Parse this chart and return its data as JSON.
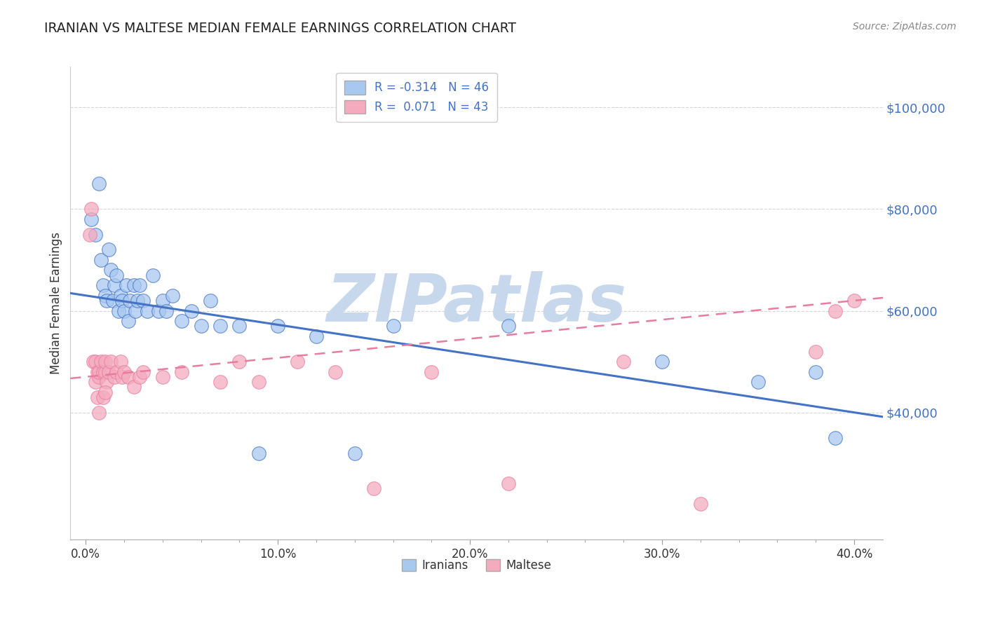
{
  "title": "IRANIAN VS MALTESE MEDIAN FEMALE EARNINGS CORRELATION CHART",
  "source": "Source: ZipAtlas.com",
  "ylabel": "Median Female Earnings",
  "xlabel_ticks": [
    "0.0%",
    "",
    "",
    "",
    "",
    "10.0%",
    "",
    "",
    "",
    "",
    "20.0%",
    "",
    "",
    "",
    "",
    "30.0%",
    "",
    "",
    "",
    "",
    "40.0%"
  ],
  "xlabel_vals": [
    0.0,
    0.02,
    0.04,
    0.06,
    0.08,
    0.1,
    0.12,
    0.14,
    0.16,
    0.18,
    0.2,
    0.22,
    0.24,
    0.26,
    0.28,
    0.3,
    0.32,
    0.34,
    0.36,
    0.38,
    0.4
  ],
  "xlim": [
    -0.008,
    0.415
  ],
  "ylim": [
    15000,
    108000
  ],
  "ytick_vals": [
    40000,
    60000,
    80000,
    100000
  ],
  "ytick_labels": [
    "$40,000",
    "$60,000",
    "$80,000",
    "$100,000"
  ],
  "iranians_R": -0.314,
  "iranians_N": 46,
  "maltese_R": 0.071,
  "maltese_N": 43,
  "legend_label_iranians": "Iranians",
  "legend_label_maltese": "Maltese",
  "color_iranians": "#A8C8F0",
  "color_maltese": "#F4ABBE",
  "line_color_iranians": "#4472C4",
  "line_color_maltese": "#E87CA0",
  "watermark": "ZIPatlas",
  "watermark_color": "#C8D8EC",
  "background_color": "#FFFFFF",
  "grid_color": "#CCCCCC",
  "iranians_x": [
    0.003,
    0.005,
    0.007,
    0.008,
    0.009,
    0.01,
    0.011,
    0.012,
    0.013,
    0.014,
    0.015,
    0.016,
    0.017,
    0.018,
    0.019,
    0.02,
    0.021,
    0.022,
    0.023,
    0.025,
    0.026,
    0.027,
    0.028,
    0.03,
    0.032,
    0.035,
    0.038,
    0.04,
    0.042,
    0.045,
    0.05,
    0.055,
    0.06,
    0.065,
    0.07,
    0.08,
    0.09,
    0.1,
    0.12,
    0.14,
    0.16,
    0.22,
    0.3,
    0.35,
    0.38,
    0.39
  ],
  "iranians_y": [
    78000,
    75000,
    85000,
    70000,
    65000,
    63000,
    62000,
    72000,
    68000,
    62000,
    65000,
    67000,
    60000,
    63000,
    62000,
    60000,
    65000,
    58000,
    62000,
    65000,
    60000,
    62000,
    65000,
    62000,
    60000,
    67000,
    60000,
    62000,
    60000,
    63000,
    58000,
    60000,
    57000,
    62000,
    57000,
    57000,
    32000,
    57000,
    55000,
    32000,
    57000,
    57000,
    50000,
    46000,
    48000,
    35000
  ],
  "maltese_x": [
    0.002,
    0.003,
    0.004,
    0.005,
    0.005,
    0.006,
    0.006,
    0.007,
    0.007,
    0.008,
    0.009,
    0.009,
    0.01,
    0.01,
    0.011,
    0.012,
    0.013,
    0.015,
    0.016,
    0.018,
    0.019,
    0.02,
    0.022,
    0.025,
    0.028,
    0.03,
    0.04,
    0.05,
    0.07,
    0.08,
    0.09,
    0.11,
    0.13,
    0.15,
    0.18,
    0.22,
    0.28,
    0.32,
    0.38,
    0.39,
    0.4,
    0.007,
    0.01
  ],
  "maltese_y": [
    75000,
    80000,
    50000,
    50000,
    46000,
    48000,
    43000,
    47000,
    48000,
    50000,
    48000,
    43000,
    48000,
    50000,
    46000,
    48000,
    50000,
    47000,
    48000,
    50000,
    47000,
    48000,
    47000,
    45000,
    47000,
    48000,
    47000,
    48000,
    46000,
    50000,
    46000,
    50000,
    48000,
    25000,
    48000,
    26000,
    50000,
    22000,
    52000,
    60000,
    62000,
    40000,
    44000
  ]
}
